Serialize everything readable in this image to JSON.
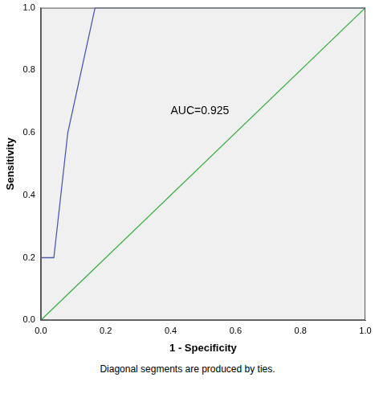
{
  "chart_data": {
    "type": "line",
    "x_label": "1 - Specificity",
    "y_label": "Sensitivity",
    "series": [
      {
        "color": "#4a5bb0",
        "x": [
          0,
          0,
          0.04,
          0.083,
          0.167,
          1
        ],
        "values": [
          0,
          0.2,
          0.2,
          0.6,
          1.0,
          1.0
        ]
      },
      {
        "color": "#3cb043",
        "x": [
          0,
          1
        ],
        "values": [
          0,
          1
        ]
      }
    ],
    "xlim": [
      0,
      1
    ],
    "ylim": [
      0,
      1
    ],
    "xticks": [
      {
        "value": 0,
        "label": "0.0"
      },
      {
        "value": 0.2,
        "label": "0.2"
      },
      {
        "value": 0.4,
        "label": "0.4"
      },
      {
        "value": 0.6,
        "label": "0.6"
      },
      {
        "value": 0.8,
        "label": "0.8"
      },
      {
        "value": 1,
        "label": "1.0"
      }
    ],
    "yticks": [
      {
        "value": 0,
        "label": "0.0"
      },
      {
        "value": 0.2,
        "label": "0.2"
      },
      {
        "value": 0.4,
        "label": "0.4"
      },
      {
        "value": 0.6,
        "label": "0.6"
      },
      {
        "value": 0.8,
        "label": "0.8"
      },
      {
        "value": 1,
        "label": "1.0"
      }
    ],
    "grid": false,
    "annotations": [
      "AUC=0.925"
    ],
    "caption": "Diagonal segments are produced by ties."
  }
}
